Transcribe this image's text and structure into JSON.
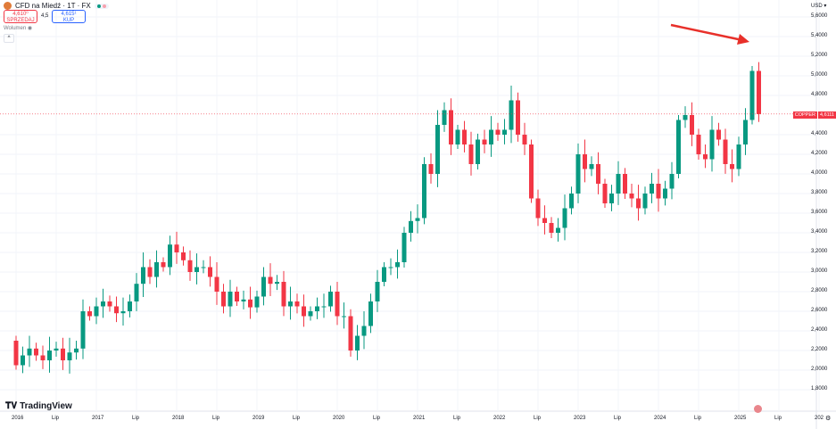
{
  "header": {
    "title": "CFD na Miedź · 1T · FX",
    "sell_price": "4,610⁰",
    "sell_label": "SPRZEDAJ",
    "spread": "4,5",
    "buy_price": "4,615¹",
    "buy_label": "KUP",
    "volume_label": "Wolumen"
  },
  "colors": {
    "up": "#089981",
    "down": "#f23645",
    "arrow": "#e8302a"
  },
  "axis": {
    "currency": "USD",
    "price_ticks": [
      "5,6000",
      "5,4000",
      "5,2000",
      "5,0000",
      "4,8000",
      "4,4000",
      "4,2000",
      "4,0000",
      "3,8000",
      "3,6000",
      "3,4000",
      "3,2000",
      "3,0000",
      "2,8000",
      "2,6000",
      "2,4000",
      "2,2000",
      "2,0000",
      "1,8000"
    ],
    "time_ticks": [
      "2016",
      "Lip",
      "2017",
      "Lip",
      "2018",
      "Lip",
      "2019",
      "Lip",
      "2020",
      "Lip",
      "2021",
      "Lip",
      "2022",
      "Lip",
      "2023",
      "Lip",
      "2024",
      "Lip",
      "2025",
      "Lip",
      "202"
    ]
  },
  "last_price": {
    "symbol": "COPPER",
    "value": "4,6111"
  },
  "brand": "TradingView",
  "chart_data": {
    "type": "candlestick",
    "interval": "monthly approx",
    "start": "2016-01",
    "ylim": [
      1.8,
      5.6
    ],
    "closes": [
      2.05,
      2.15,
      2.22,
      2.15,
      2.1,
      2.2,
      2.22,
      2.1,
      2.18,
      2.22,
      2.6,
      2.55,
      2.65,
      2.7,
      2.65,
      2.58,
      2.6,
      2.7,
      2.88,
      3.05,
      2.95,
      3.1,
      3.05,
      3.28,
      3.2,
      3.12,
      3.0,
      3.05,
      3.05,
      2.95,
      2.8,
      2.65,
      2.8,
      2.7,
      2.72,
      2.64,
      2.75,
      2.95,
      2.88,
      2.9,
      2.65,
      2.7,
      2.65,
      2.55,
      2.6,
      2.65,
      2.65,
      2.8,
      2.55,
      2.55,
      2.2,
      2.35,
      2.45,
      2.7,
      2.9,
      3.05,
      3.05,
      3.1,
      3.4,
      3.52,
      3.55,
      4.1,
      4.0,
      4.5,
      4.65,
      4.3,
      4.45,
      4.3,
      4.1,
      4.35,
      4.3,
      4.45,
      4.4,
      4.45,
      4.75,
      4.4,
      4.3,
      3.75,
      3.55,
      3.5,
      3.4,
      3.45,
      3.65,
      3.8,
      4.2,
      4.05,
      4.1,
      3.9,
      3.7,
      3.8,
      4.0,
      3.8,
      3.75,
      3.65,
      3.8,
      3.9,
      3.75,
      3.85,
      4.0,
      4.55,
      4.6,
      4.4,
      4.2,
      4.15,
      4.45,
      4.35,
      4.1,
      4.05,
      4.3,
      4.55,
      5.05,
      4.61
    ],
    "first_open": 2.3
  }
}
